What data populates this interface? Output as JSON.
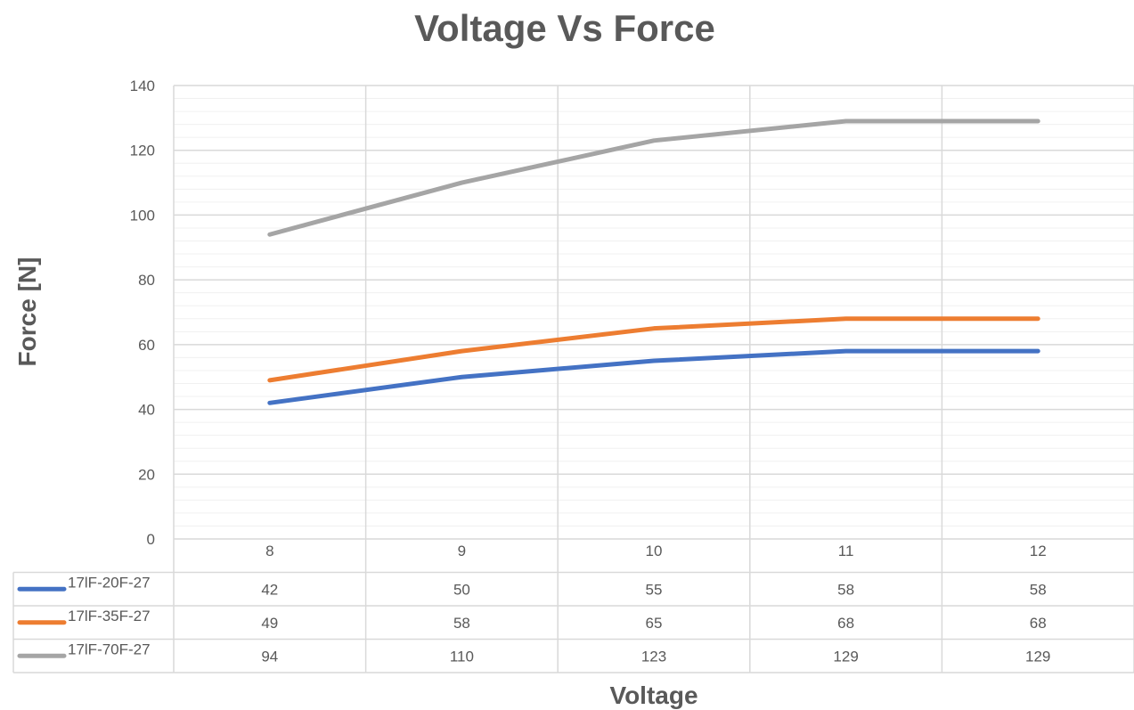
{
  "chart_data": {
    "type": "line",
    "title": "Voltage Vs Force",
    "xlabel": "Voltage",
    "ylabel": "Force [N]",
    "categories": [
      "8",
      "9",
      "10",
      "11",
      "12"
    ],
    "ylim": [
      0,
      140
    ],
    "yticks": [
      0,
      20,
      40,
      60,
      80,
      100,
      120,
      140
    ],
    "grid": true,
    "legend": "data-table-left",
    "series": [
      {
        "name": "17lF-20F-27",
        "color": "#4472c4",
        "values": [
          42,
          50,
          55,
          58,
          58
        ]
      },
      {
        "name": "17lF-35F-27",
        "color": "#ed7d31",
        "values": [
          49,
          58,
          65,
          68,
          68
        ]
      },
      {
        "name": "17lF-70F-27",
        "color": "#a5a5a5",
        "values": [
          94,
          110,
          123,
          129,
          129
        ]
      }
    ]
  }
}
